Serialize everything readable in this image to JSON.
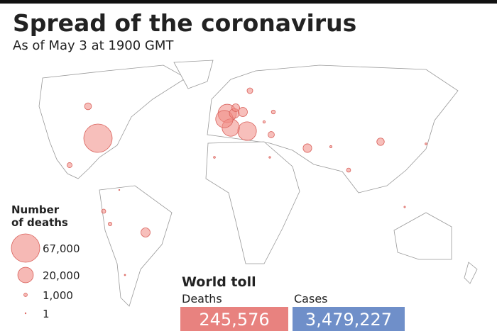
{
  "header": {
    "title": "Spread of the coronavirus",
    "subtitle": "As of May 3 at 1900 GMT"
  },
  "legend": {
    "title_lines": [
      "Number",
      "of deaths"
    ],
    "sizes": [
      {
        "value": 67000,
        "label": "67,000"
      },
      {
        "value": 20000,
        "label": "20,000"
      },
      {
        "value": 1000,
        "label": "1,000"
      },
      1
    ],
    "color": "#f08a84"
  },
  "bubbles": [
    67000,
    28000,
    29000,
    25000,
    25000,
    8000,
    7000,
    5000,
    6200,
    7000,
    4000,
    2100,
    3300,
    4600,
    1300,
    1400,
    1100,
    1500,
    2700,
    300,
    200,
    500,
    250,
    400,
    150,
    100,
    300
  ],
  "world_toll": {
    "title": "World toll",
    "deaths_label": "Deaths",
    "deaths": "245,576",
    "cases_label": "Cases",
    "cases": "3,479,227",
    "deaths_color": "#e8827f",
    "cases_color": "#6f8fc9"
  }
}
